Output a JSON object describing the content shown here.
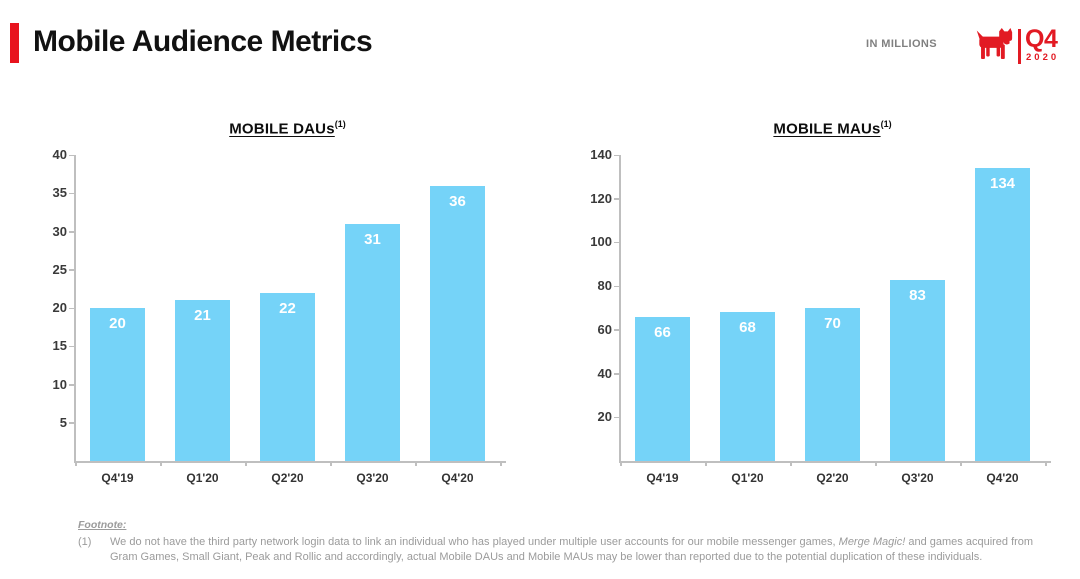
{
  "slide": {
    "title": "Mobile Audience Metrics",
    "units_label": "IN MILLIONS",
    "brand": {
      "logo_icon": "zynga-dog",
      "quarter": "Q4",
      "year": "2020"
    }
  },
  "colors": {
    "accent_red": "#E8141E",
    "brand_red": "#E21A23",
    "bar_blue": "#75D3F8",
    "axis_gray": "#BFBFBF",
    "footnote_gray": "#9B9B9B",
    "value_label_white": "#FFFFFF"
  },
  "chart_data": [
    {
      "type": "bar",
      "title": "MOBILE DAUs",
      "title_superscript": "(1)",
      "categories": [
        "Q4'19",
        "Q1'20",
        "Q2'20",
        "Q3'20",
        "Q4'20"
      ],
      "values": [
        20,
        21,
        22,
        31,
        36
      ],
      "ylim": [
        0,
        40
      ],
      "yticks": [
        5,
        10,
        15,
        20,
        25,
        30,
        35,
        40
      ],
      "unit": "millions",
      "grid": false,
      "legend": "none"
    },
    {
      "type": "bar",
      "title": "MOBILE MAUs",
      "title_superscript": "(1)",
      "categories": [
        "Q4'19",
        "Q1'20",
        "Q2'20",
        "Q3'20",
        "Q4'20"
      ],
      "values": [
        66,
        68,
        70,
        83,
        134
      ],
      "ylim": [
        0,
        140
      ],
      "yticks": [
        20,
        40,
        60,
        80,
        100,
        120,
        140
      ],
      "unit": "millions",
      "grid": false,
      "legend": "none"
    }
  ],
  "footnote": {
    "label": "Footnote:",
    "marker": "(1)",
    "text_before": "We do not have the third party network login data to link an individual who has played under multiple user accounts for our mobile messenger games, ",
    "italic_part": "Merge Magic!",
    "text_after": " and games acquired from Gram Games, Small Giant, Peak and Rollic and accordingly, actual Mobile DAUs and Mobile MAUs may be lower than reported due to the potential duplication of these individuals."
  }
}
